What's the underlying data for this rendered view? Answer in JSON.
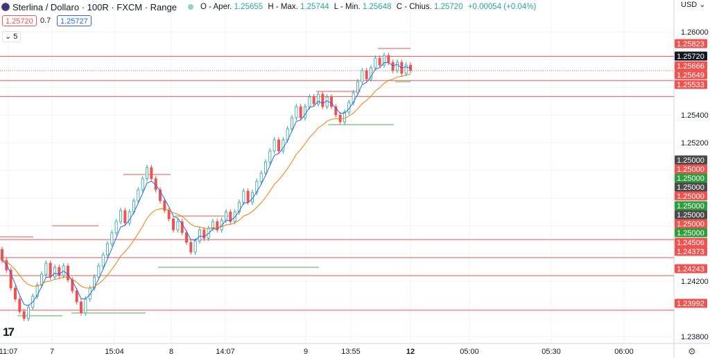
{
  "header": {
    "symbol": "Sterlina / Dollaro · 100R · FXCM · Range",
    "o_label": "O - Aper.",
    "o_value": "1.25655",
    "h_label": "H - Max.",
    "h_value": "1.25744",
    "l_label": "L - Min.",
    "l_value": "1.25648",
    "c_label": "C - Chius.",
    "c_value": "1.25720",
    "change": "+0.00054 (+0.04%)"
  },
  "trade": {
    "sell": "1.25720",
    "spread": "0.7",
    "buy": "1.25727"
  },
  "indicator_toggle": {
    "count": "5"
  },
  "currency": "USD",
  "colors": {
    "up": "#26a69a",
    "down": "#ef5350",
    "fast_ma": "#2962ff",
    "slow_ma": "#f57c00",
    "line_red": "#ef5350",
    "line_green": "#4caf50"
  },
  "chart_data": {
    "type": "candlestick",
    "ylim": [
      1.2375,
      1.2613
    ],
    "y_ticks": [
      "1.26000",
      "1.25400",
      "1.25200",
      "1.24200",
      "1.23800"
    ],
    "x_ticks": [
      "11:07",
      "7",
      "15:04",
      "8",
      "14:07",
      "9",
      "13:55",
      "12",
      "05:00",
      "05:30",
      "06:00"
    ],
    "x_ticks_bold": [
      "12"
    ],
    "price_labels": [
      {
        "text": "1.25823",
        "kind": "red"
      },
      {
        "text": "1.25720",
        "kind": "black"
      },
      {
        "text": "1.25666",
        "kind": "red"
      },
      {
        "text": "1.25649",
        "kind": "red"
      },
      {
        "text": "1.25533",
        "kind": "red"
      },
      {
        "text": "1.25000",
        "kind": "gray"
      },
      {
        "text": "1.25000",
        "kind": "red"
      },
      {
        "text": "1.25000",
        "kind": "green"
      },
      {
        "text": "1.25000",
        "kind": "gray"
      },
      {
        "text": "1.25000",
        "kind": "red"
      },
      {
        "text": "1.25000",
        "kind": "green"
      },
      {
        "text": "1.25000",
        "kind": "gray"
      },
      {
        "text": "1.25000",
        "kind": "red"
      },
      {
        "text": "1.25000",
        "kind": "green"
      },
      {
        "text": "1.24506",
        "kind": "red"
      },
      {
        "text": "1.24373",
        "kind": "red"
      },
      {
        "text": "1.24243",
        "kind": "red"
      },
      {
        "text": "1.23992",
        "kind": "red"
      }
    ],
    "h_lines": [
      1.25823,
      1.25649,
      1.25533,
      1.245,
      1.2437,
      1.2424,
      1.2399
    ],
    "closes": [
      1.2435,
      1.2428,
      1.2415,
      1.2407,
      1.2398,
      1.2393,
      1.2401,
      1.2409,
      1.2417,
      1.2425,
      1.2433,
      1.2423,
      1.243,
      1.2424,
      1.2431,
      1.2421,
      1.2413,
      1.2405,
      1.2397,
      1.2407,
      1.2415,
      1.2423,
      1.2431,
      1.2439,
      1.2447,
      1.2455,
      1.2463,
      1.2471,
      1.2462,
      1.247,
      1.2478,
      1.2486,
      1.2494,
      1.2502,
      1.2494,
      1.2486,
      1.2478,
      1.2471,
      1.2465,
      1.2457,
      1.2463,
      1.2455,
      1.2448,
      1.2441,
      1.2449,
      1.2457,
      1.2451,
      1.2458,
      1.2463,
      1.2457,
      1.2464,
      1.247,
      1.2463,
      1.247,
      1.2477,
      1.2485,
      1.2477,
      1.2484,
      1.2492,
      1.2498,
      1.2506,
      1.2514,
      1.2522,
      1.2514,
      1.2522,
      1.253,
      1.2538,
      1.2546,
      1.2538,
      1.2546,
      1.2553,
      1.2548,
      1.2555,
      1.2546,
      1.2553,
      1.2546,
      1.254,
      1.2535,
      1.2542,
      1.2549,
      1.2556,
      1.2564,
      1.2572,
      1.2566,
      1.2574,
      1.2581,
      1.2576,
      1.2583,
      1.2578,
      1.2572,
      1.2578,
      1.257,
      1.2576,
      1.2572
    ]
  }
}
